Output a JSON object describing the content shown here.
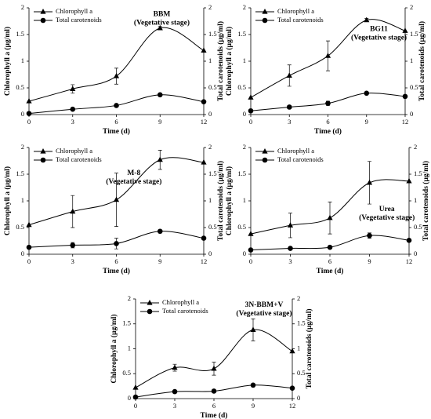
{
  "chart_data": [
    {
      "type": "line",
      "title": "BBM",
      "subtitle": "(Vegetative stage)",
      "x": [
        0,
        3,
        6,
        9,
        12
      ],
      "xlim": [
        0,
        12
      ],
      "xticks": [
        0,
        3,
        6,
        9,
        12
      ],
      "ylim": [
        0,
        2
      ],
      "yticks": [
        0,
        0.5,
        1,
        1.5,
        2
      ],
      "y2lim": [
        0,
        2
      ],
      "y2ticks": [
        0,
        0.5,
        1,
        1.5,
        2
      ],
      "xlabel": "Time (d)",
      "ylabel": "Chlorophyll a  (µg/ml)",
      "y2label": "Total carotenoids  (µg/ml)",
      "series": [
        {
          "name": "Chlorophyll a",
          "color": "#000000",
          "marker": "triangle",
          "values": [
            0.25,
            0.48,
            0.72,
            1.62,
            1.2
          ],
          "errors": [
            null,
            0.08,
            0.15,
            0.03,
            null
          ]
        },
        {
          "name": "Total carotenoids",
          "color": "#000000",
          "marker": "circle",
          "axis": "y2",
          "values": [
            0.02,
            0.1,
            0.17,
            0.37,
            0.24
          ],
          "errors": [
            null,
            null,
            0.03,
            null,
            null
          ]
        }
      ]
    },
    {
      "type": "line",
      "title": "BG11",
      "subtitle": "(Vegetative stage)",
      "x": [
        0,
        3,
        6,
        9,
        12
      ],
      "xlim": [
        0,
        12
      ],
      "xticks": [
        0,
        3,
        6,
        9,
        12
      ],
      "ylim": [
        0,
        2
      ],
      "yticks": [
        0,
        0.5,
        1,
        1.5,
        2
      ],
      "y2lim": [
        0,
        2
      ],
      "y2ticks": [
        0,
        0.5,
        1,
        1.5,
        2
      ],
      "xlabel": "Time (d)",
      "ylabel": "Chlorophyll a  (µg/ml)",
      "y2label": "Total carotenoids  (µg/ml)",
      "series": [
        {
          "name": "Chlorophyll a",
          "color": "#000000",
          "marker": "triangle",
          "values": [
            0.32,
            0.73,
            1.1,
            1.77,
            1.57
          ],
          "errors": [
            null,
            0.2,
            0.28,
            0.03,
            null
          ]
        },
        {
          "name": "Total carotenoids",
          "color": "#000000",
          "marker": "circle",
          "axis": "y2",
          "values": [
            0.07,
            0.14,
            0.21,
            0.4,
            0.34
          ],
          "errors": [
            0.02,
            0.03,
            0.04,
            0.02,
            null
          ]
        }
      ]
    },
    {
      "type": "line",
      "title": "M-8",
      "subtitle": "(Vegetative stage)",
      "x": [
        0,
        3,
        6,
        9,
        12
      ],
      "xlim": [
        0,
        12
      ],
      "xticks": [
        0,
        3,
        6,
        9,
        12
      ],
      "ylim": [
        0,
        2
      ],
      "yticks": [
        0,
        0.5,
        1,
        1.5,
        2
      ],
      "y2lim": [
        0,
        2
      ],
      "y2ticks": [
        0,
        0.5,
        1,
        1.5,
        2
      ],
      "xlabel": "Time (d)",
      "ylabel": "Chlorophyll a  (µg/ml)",
      "y2label": "Total carotenoids  (µg/ml)",
      "series": [
        {
          "name": "Chlorophyll a",
          "color": "#000000",
          "marker": "triangle",
          "values": [
            0.55,
            0.8,
            1.02,
            1.77,
            1.72
          ],
          "errors": [
            null,
            0.3,
            0.5,
            0.18,
            null
          ]
        },
        {
          "name": "Total carotenoids",
          "color": "#000000",
          "marker": "circle",
          "axis": "y2",
          "values": [
            0.13,
            0.17,
            0.2,
            0.43,
            0.3
          ],
          "errors": [
            0.02,
            0.05,
            0.1,
            0.02,
            null
          ]
        }
      ]
    },
    {
      "type": "line",
      "title": "Urea",
      "subtitle": "(Vegetative stage)",
      "x": [
        0,
        3,
        6,
        9,
        12
      ],
      "xlim": [
        0,
        12
      ],
      "xticks": [
        0,
        3,
        6,
        9,
        12
      ],
      "ylim": [
        0,
        2
      ],
      "yticks": [
        0,
        0.5,
        1,
        1.5,
        2
      ],
      "y2lim": [
        0,
        2
      ],
      "y2ticks": [
        0,
        0.5,
        1,
        1.5,
        2
      ],
      "xlabel": "Time (d)",
      "ylabel": "Chlorophyll a  (µg/ml)",
      "y2label": "Total carotenoids  (µg/ml)",
      "series": [
        {
          "name": "Chlorophyll a",
          "color": "#000000",
          "marker": "triangle",
          "values": [
            0.38,
            0.54,
            0.68,
            1.34,
            1.37
          ],
          "errors": [
            null,
            0.23,
            0.3,
            0.4,
            null
          ]
        },
        {
          "name": "Total carotenoids",
          "color": "#000000",
          "marker": "circle",
          "axis": "y2",
          "values": [
            0.08,
            0.11,
            0.13,
            0.35,
            0.26
          ],
          "errors": [
            null,
            0.02,
            0.02,
            0.05,
            null
          ]
        }
      ]
    },
    {
      "type": "line",
      "title": "3N-BBM+V",
      "subtitle": "(Vegetative stage)",
      "x": [
        0,
        3,
        6,
        9,
        12
      ],
      "xlim": [
        0,
        12
      ],
      "xticks": [
        0,
        3,
        6,
        9,
        12
      ],
      "ylim": [
        0,
        2
      ],
      "yticks": [
        0,
        0.5,
        1,
        1.5,
        2
      ],
      "y2lim": [
        0,
        2
      ],
      "y2ticks": [
        0,
        0.5,
        1,
        1.5,
        2
      ],
      "xlabel": "Time (d)",
      "ylabel": "Chlorophyll a  (µg/ml)",
      "y2label": "Total carotenoids  (µg/ml)",
      "series": [
        {
          "name": "Chlorophyll a",
          "color": "#000000",
          "marker": "triangle",
          "values": [
            0.22,
            0.62,
            0.6,
            1.38,
            0.95
          ],
          "errors": [
            null,
            0.07,
            0.13,
            0.22,
            null
          ]
        },
        {
          "name": "Total carotenoids",
          "color": "#000000",
          "marker": "circle",
          "axis": "y2",
          "values": [
            0.03,
            0.14,
            0.15,
            0.27,
            0.21
          ],
          "errors": [
            null,
            0.02,
            0.02,
            0.02,
            null
          ]
        }
      ]
    }
  ]
}
